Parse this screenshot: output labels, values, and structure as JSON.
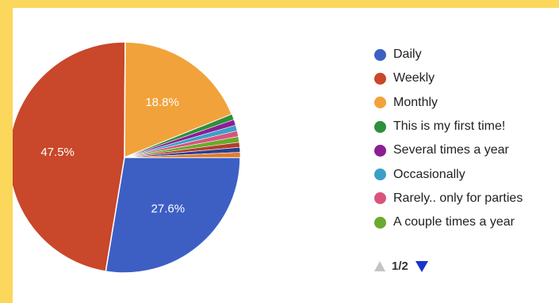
{
  "chart_data": {
    "type": "pie",
    "title": "",
    "legend_position": "right",
    "slices": [
      {
        "name": "Daily",
        "value": 27.6,
        "color": "#3d5fc4",
        "label": "27.6%"
      },
      {
        "name": "Weekly",
        "value": 47.5,
        "color": "#c9472a",
        "label": "47.5%"
      },
      {
        "name": "Monthly",
        "value": 18.8,
        "color": "#f2a23a",
        "label": "18.8%"
      },
      {
        "name": "This is my first time!",
        "value": 0.8,
        "color": "#2e8f3c",
        "label": ""
      },
      {
        "name": "Several times a year",
        "value": 0.8,
        "color": "#8c1e92",
        "label": ""
      },
      {
        "name": "Occasionally",
        "value": 0.8,
        "color": "#3aa0c8",
        "label": ""
      },
      {
        "name": "Rarely.. only for parties",
        "value": 0.8,
        "color": "#d9547c",
        "label": ""
      },
      {
        "name": "A couple times a year",
        "value": 0.8,
        "color": "#6aaa2e",
        "label": ""
      },
      {
        "name": "",
        "value": 0.7,
        "color": "#b33d2c",
        "label": ""
      },
      {
        "name": "",
        "value": 0.7,
        "color": "#2b3f91",
        "label": ""
      },
      {
        "name": "",
        "value": 0.7,
        "color": "#e07b2e",
        "label": ""
      }
    ]
  },
  "legend": {
    "items": [
      {
        "label": "Daily",
        "color": "#3d5fc4"
      },
      {
        "label": "Weekly",
        "color": "#c9472a"
      },
      {
        "label": "Monthly",
        "color": "#f2a23a"
      },
      {
        "label": "This is my first time!",
        "color": "#2e8f3c"
      },
      {
        "label": "Several times a year",
        "color": "#8c1e92"
      },
      {
        "label": "Occasionally",
        "color": "#3aa0c8"
      },
      {
        "label": "Rarely.. only for parties",
        "color": "#d9547c"
      },
      {
        "label": "A couple times a year",
        "color": "#6aaa2e"
      }
    ]
  },
  "pager": {
    "text": "1/2",
    "prev_icon": "triangle-up-icon",
    "next_icon": "triangle-down-icon"
  }
}
